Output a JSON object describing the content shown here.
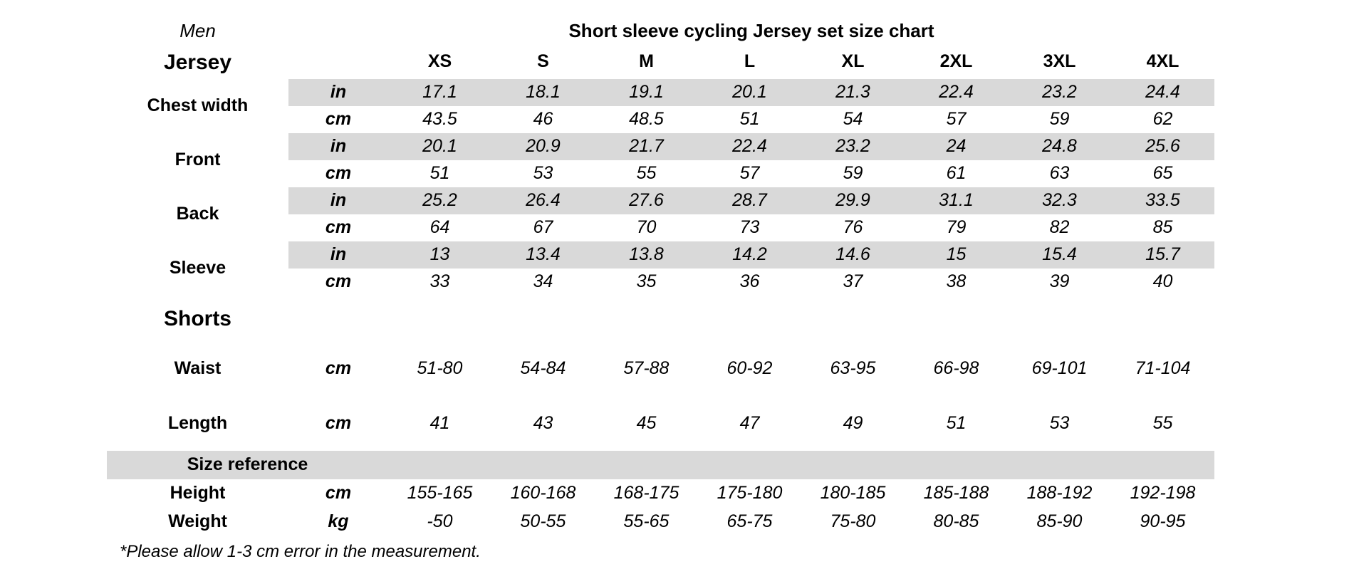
{
  "meta": {
    "gender_label": "Men",
    "title": "Short sleeve cycling Jersey set size chart",
    "footnote": "*Please allow 1-3 cm error in the measurement.",
    "band_color": "#d9d9d9",
    "text_color": "#000000",
    "background_color": "#ffffff"
  },
  "sizes": [
    "XS",
    "S",
    "M",
    "L",
    "XL",
    "2XL",
    "3XL",
    "4XL"
  ],
  "jersey": {
    "label": "Jersey",
    "measures": [
      {
        "label": "Chest width",
        "units": [
          {
            "unit": "in",
            "shaded": true,
            "values": [
              "17.1",
              "18.1",
              "19.1",
              "20.1",
              "21.3",
              "22.4",
              "23.2",
              "24.4"
            ]
          },
          {
            "unit": "cm",
            "shaded": false,
            "values": [
              "43.5",
              "46",
              "48.5",
              "51",
              "54",
              "57",
              "59",
              "62"
            ]
          }
        ]
      },
      {
        "label": "Front",
        "units": [
          {
            "unit": "in",
            "shaded": true,
            "values": [
              "20.1",
              "20.9",
              "21.7",
              "22.4",
              "23.2",
              "24",
              "24.8",
              "25.6"
            ]
          },
          {
            "unit": "cm",
            "shaded": false,
            "values": [
              "51",
              "53",
              "55",
              "57",
              "59",
              "61",
              "63",
              "65"
            ]
          }
        ]
      },
      {
        "label": "Back",
        "units": [
          {
            "unit": "in",
            "shaded": true,
            "values": [
              "25.2",
              "26.4",
              "27.6",
              "28.7",
              "29.9",
              "31.1",
              "32.3",
              "33.5"
            ]
          },
          {
            "unit": "cm",
            "shaded": false,
            "values": [
              "64",
              "67",
              "70",
              "73",
              "76",
              "79",
              "82",
              "85"
            ]
          }
        ]
      },
      {
        "label": "Sleeve",
        "units": [
          {
            "unit": "in",
            "shaded": true,
            "values": [
              "13",
              "13.4",
              "13.8",
              "14.2",
              "14.6",
              "15",
              "15.4",
              "15.7"
            ]
          },
          {
            "unit": "cm",
            "shaded": false,
            "values": [
              "33",
              "34",
              "35",
              "36",
              "37",
              "38",
              "39",
              "40"
            ]
          }
        ]
      }
    ]
  },
  "shorts": {
    "label": "Shorts",
    "rows": [
      {
        "label": "Waist",
        "unit": "cm",
        "values": [
          "51-80",
          "54-84",
          "57-88",
          "60-92",
          "63-95",
          "66-98",
          "69-101",
          "71-104"
        ]
      },
      {
        "label": "Length",
        "unit": "cm",
        "values": [
          "41",
          "43",
          "45",
          "47",
          "49",
          "51",
          "53",
          "55"
        ]
      }
    ]
  },
  "size_reference": {
    "label": "Size reference",
    "rows": [
      {
        "label": "Height",
        "unit": "cm",
        "values": [
          "155-165",
          "160-168",
          "168-175",
          "175-180",
          "180-185",
          "185-188",
          "188-192",
          "192-198"
        ]
      },
      {
        "label": "Weight",
        "unit": "kg",
        "values": [
          "-50",
          "50-55",
          "55-65",
          "65-75",
          "75-80",
          "80-85",
          "85-90",
          "90-95"
        ]
      }
    ]
  }
}
